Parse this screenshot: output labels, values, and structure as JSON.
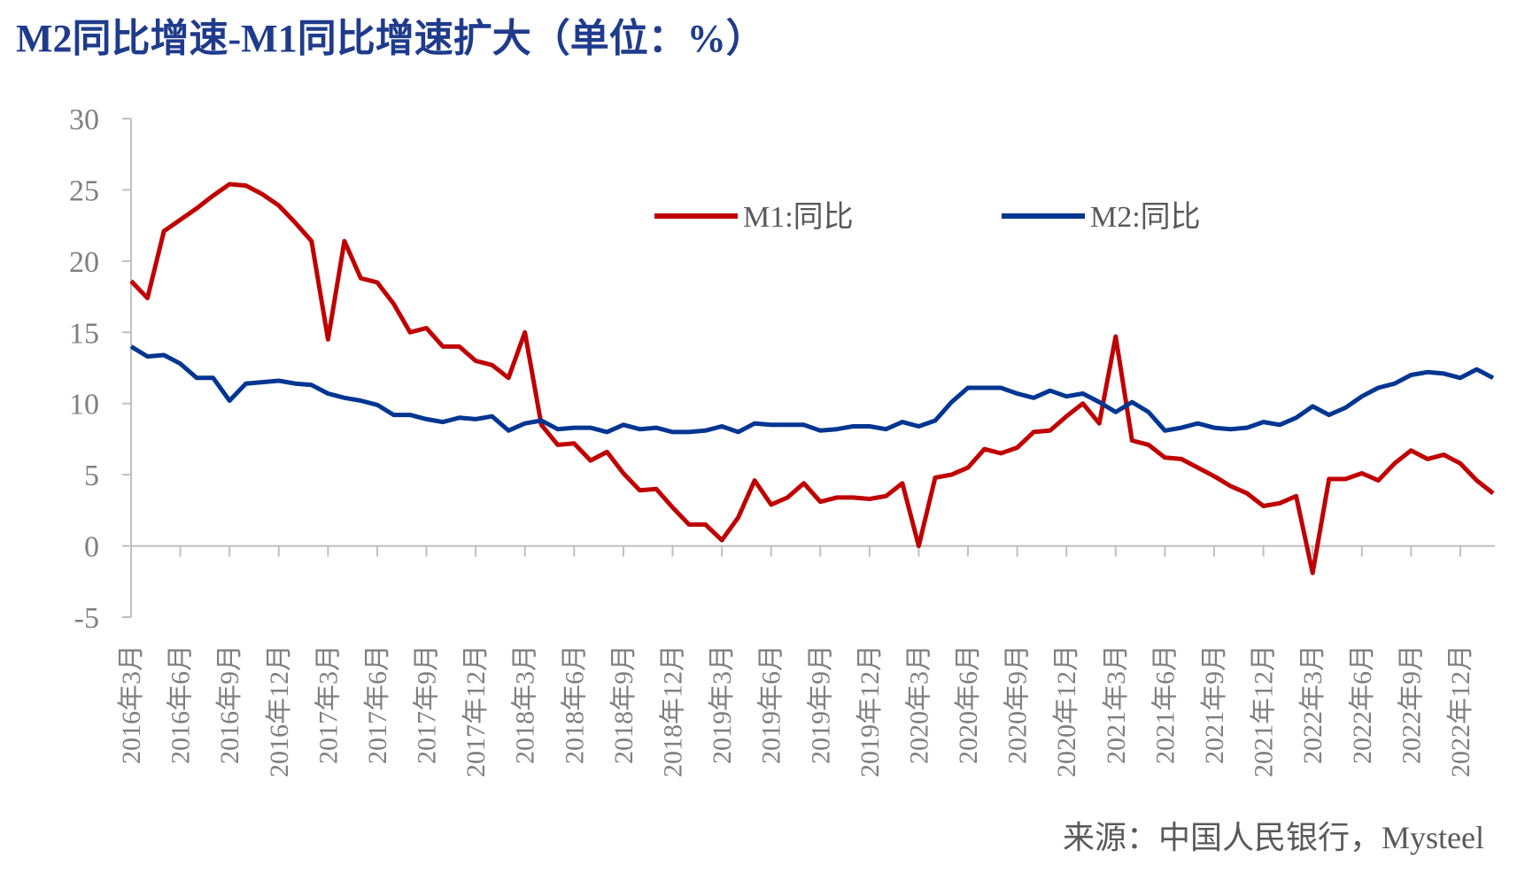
{
  "chart_data": {
    "type": "line",
    "title": "M2同比增速-M1同比增速扩大（单位：%）",
    "source": "来源：中国人民银行，Mysteel",
    "categories": [
      "2016年3月",
      null,
      null,
      "2016年6月",
      null,
      null,
      "2016年9月",
      null,
      null,
      "2016年12月",
      null,
      null,
      "2017年3月",
      null,
      null,
      "2017年6月",
      null,
      null,
      "2017年9月",
      null,
      null,
      "2017年12月",
      null,
      null,
      "2018年3月",
      null,
      null,
      "2018年6月",
      null,
      null,
      "2018年9月",
      null,
      null,
      "2018年12月",
      null,
      null,
      "2019年3月",
      null,
      null,
      "2019年6月",
      null,
      null,
      "2019年9月",
      null,
      null,
      "2019年12月",
      null,
      null,
      "2020年3月",
      null,
      null,
      "2020年6月",
      null,
      null,
      "2020年9月",
      null,
      null,
      "2020年12月",
      null,
      null,
      "2021年3月",
      null,
      null,
      "2021年6月",
      null,
      null,
      "2021年9月",
      null,
      null,
      "2021年12月",
      null,
      null,
      "2022年3月",
      null,
      null,
      "2022年6月",
      null,
      null,
      "2022年9月",
      null,
      null,
      "2022年12月",
      null,
      null
    ],
    "series": [
      {
        "name": "M1:同比",
        "color": "#c00000",
        "values": [
          18.6,
          17.4,
          22.1,
          22.9,
          23.7,
          24.6,
          25.4,
          25.3,
          24.7,
          23.9,
          22.7,
          21.4,
          14.5,
          21.4,
          18.8,
          18.5,
          17.0,
          15.0,
          15.3,
          14.0,
          14.0,
          13.0,
          12.7,
          11.8,
          15.0,
          8.5,
          7.1,
          7.2,
          6.0,
          6.6,
          5.1,
          3.9,
          4.0,
          2.7,
          1.5,
          1.5,
          0.4,
          2.0,
          4.6,
          2.9,
          3.4,
          4.4,
          3.1,
          3.4,
          3.4,
          3.3,
          3.5,
          4.4,
          0.0,
          4.8,
          5.0,
          5.5,
          6.8,
          6.5,
          6.9,
          8.0,
          8.1,
          9.1,
          10.0,
          8.6,
          14.7,
          7.4,
          7.1,
          6.2,
          6.1,
          5.5,
          4.9,
          4.2,
          3.7,
          2.8,
          3.0,
          3.5,
          -1.9,
          4.7,
          4.7,
          5.1,
          4.6,
          5.8,
          6.7,
          6.1,
          6.4,
          5.8,
          4.6,
          3.7
        ]
      },
      {
        "name": "M2:同比",
        "color": "#003591",
        "values": [
          14.0,
          13.3,
          13.4,
          12.8,
          11.8,
          11.8,
          10.2,
          11.4,
          11.5,
          11.6,
          11.4,
          11.3,
          10.7,
          10.4,
          10.2,
          9.9,
          9.2,
          9.2,
          8.9,
          8.7,
          9.0,
          8.9,
          9.1,
          8.1,
          8.6,
          8.8,
          8.2,
          8.3,
          8.3,
          8.0,
          8.5,
          8.2,
          8.3,
          8.0,
          8.0,
          8.1,
          8.4,
          8.0,
          8.6,
          8.5,
          8.5,
          8.5,
          8.1,
          8.2,
          8.4,
          8.4,
          8.2,
          8.7,
          8.4,
          8.8,
          10.1,
          11.1,
          11.1,
          11.1,
          10.7,
          10.4,
          10.9,
          10.5,
          10.7,
          10.1,
          9.4,
          10.1,
          9.4,
          8.1,
          8.3,
          8.6,
          8.3,
          8.2,
          8.3,
          8.7,
          8.5,
          9.0,
          9.8,
          9.2,
          9.7,
          10.5,
          11.1,
          11.4,
          12.0,
          12.2,
          12.1,
          11.8,
          12.4,
          11.8
        ]
      }
    ],
    "ylim": [
      -5,
      30
    ],
    "yticks": [
      -5,
      0,
      5,
      10,
      15,
      20,
      25,
      30
    ],
    "legend": "top"
  }
}
